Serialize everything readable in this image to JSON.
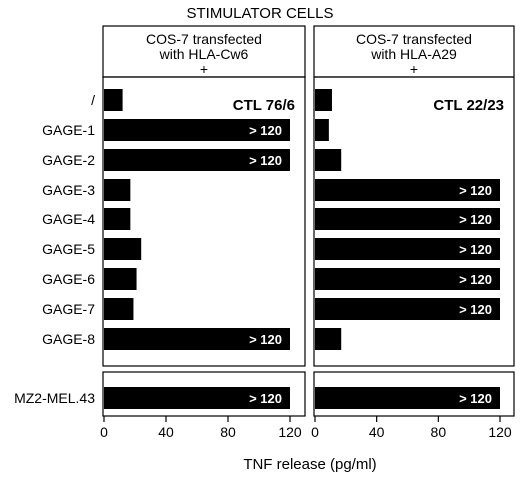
{
  "chart_data": {
    "type": "bar",
    "orientation": "horizontal",
    "title": "STIMULATOR CELLS",
    "xlabel": "TNF  release (pg/ml)",
    "xlim": [
      0,
      120
    ],
    "xticks": [
      0,
      40,
      80,
      120
    ],
    "categories": [
      "/",
      "GAGE-1",
      "GAGE-2",
      "GAGE-3",
      "GAGE-4",
      "GAGE-5",
      "GAGE-6",
      "GAGE-7",
      "GAGE-8",
      "MZ2-MEL.43"
    ],
    "panels": [
      {
        "header": [
          "COS-7 transfected",
          "with HLA-Cw6",
          "+"
        ],
        "annotation": "CTL 76/6",
        "values": [
          12,
          120,
          120,
          17,
          17,
          24,
          21,
          19,
          120,
          120
        ],
        "bar_labels": [
          "",
          "> 120",
          "> 120",
          "",
          "",
          "",
          "",
          "",
          "> 120",
          "> 120"
        ]
      },
      {
        "header": [
          "COS-7 transfected",
          "with HLA-A29",
          "+"
        ],
        "annotation": "CTL 22/23",
        "values": [
          11,
          9,
          17,
          120,
          120,
          120,
          120,
          120,
          17,
          120
        ],
        "bar_labels": [
          "",
          "",
          "",
          "> 120",
          "> 120",
          "> 120",
          "> 120",
          "> 120",
          "",
          "> 120"
        ]
      }
    ],
    "grid": false,
    "legend": "none"
  }
}
